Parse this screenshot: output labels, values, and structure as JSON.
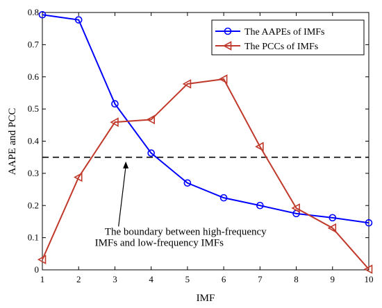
{
  "chart_data": {
    "type": "line",
    "xlabel": "IMF",
    "ylabel": "AAPE and PCC",
    "x": [
      1,
      2,
      3,
      4,
      5,
      6,
      7,
      8,
      9,
      10
    ],
    "xlim": [
      1,
      10
    ],
    "ylim": [
      0,
      0.8
    ],
    "x_ticks": [
      "1",
      "2",
      "3",
      "4",
      "5",
      "6",
      "7",
      "8",
      "9",
      "10"
    ],
    "y_ticks": [
      "0",
      "0.1",
      "0.2",
      "0.3",
      "0.4",
      "0.5",
      "0.6",
      "0.7",
      "0.8"
    ],
    "grid": false,
    "legend_position": "top-right",
    "series": [
      {
        "name": "The AAPEs of IMFs",
        "color": "#0000ff",
        "marker": "circle",
        "values": [
          0.793,
          0.777,
          0.516,
          0.363,
          0.27,
          0.224,
          0.2,
          0.175,
          0.162,
          0.146
        ]
      },
      {
        "name": "The PCCs of IMFs",
        "color": "#c0392b",
        "marker": "triangle-left",
        "values": [
          0.032,
          0.288,
          0.459,
          0.467,
          0.578,
          0.593,
          0.383,
          0.192,
          0.13,
          0.002
        ]
      }
    ],
    "reference_line": {
      "y": 0.35,
      "style": "dashed",
      "color": "#000000"
    },
    "annotation": {
      "line1": "The boundary between high-frequency",
      "line2": "IMFs and low-frequency IMFs",
      "arrow_to": {
        "x": 3.3,
        "y": 0.35
      }
    }
  }
}
